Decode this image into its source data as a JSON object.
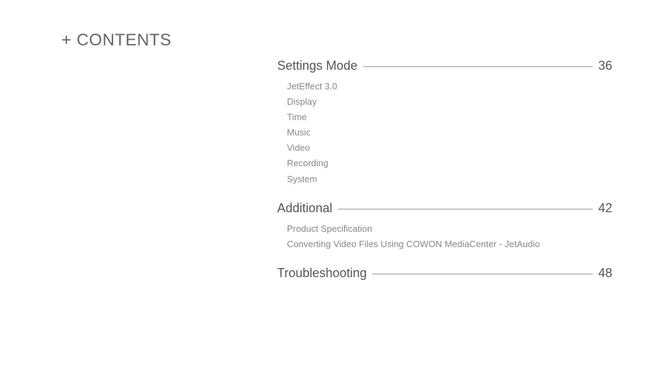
{
  "title_prefix": "+",
  "title_text": "CONTENTS",
  "sections": [
    {
      "title": "Settings Mode",
      "page": "36",
      "items": [
        "JetEffect 3.0",
        "Display",
        "Time",
        "Music",
        "Video",
        "Recording",
        "System"
      ]
    },
    {
      "title": "Additional",
      "page": "42",
      "items": [
        "Product Specification",
        "Converting Video Files Using COWON MediaCenter - JetAudio"
      ]
    },
    {
      "title": "Troubleshooting",
      "page": "48",
      "items": []
    }
  ],
  "colors": {
    "background": "#ffffff",
    "title": "#666666",
    "section_title": "#555555",
    "subitem": "#888888",
    "leader": "#999999"
  }
}
